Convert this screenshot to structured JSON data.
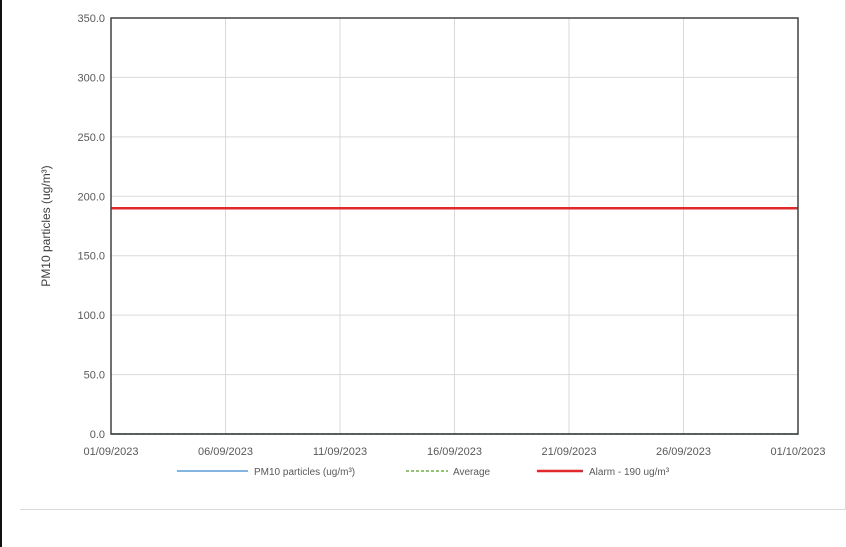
{
  "chart_data": {
    "type": "line",
    "title": "",
    "xlabel": "",
    "ylabel": "PM10 particles (ug/m³)",
    "ylim": [
      0,
      350
    ],
    "yticks": [
      "0.0",
      "50.0",
      "100.0",
      "150.0",
      "200.0",
      "250.0",
      "300.0",
      "350.0"
    ],
    "ytick_values": [
      0,
      50,
      100,
      150,
      200,
      250,
      300,
      350
    ],
    "xlim": [
      "01/09/2023",
      "01/10/2023"
    ],
    "xticks": [
      "01/09/2023",
      "06/09/2023",
      "11/09/2023",
      "16/09/2023",
      "21/09/2023",
      "26/09/2023",
      "01/10/2023"
    ],
    "grid": true,
    "legend_position": "bottom",
    "series": [
      {
        "name": "PM10 particles (ug/m³)",
        "color": "#5b9bd5",
        "style": "solid",
        "x": [
          "01/09/2023",
          "01/10/2023"
        ],
        "values": [
          0,
          0
        ]
      },
      {
        "name": "Average",
        "color": "#70ad47",
        "style": "dashed",
        "x": [
          "01/09/2023",
          "01/10/2023"
        ],
        "values": [
          0,
          0
        ]
      },
      {
        "name": "Alarm - 190 ug/m³",
        "color": "#e0292b",
        "style": "solid",
        "x": [
          "01/09/2023",
          "01/10/2023"
        ],
        "values": [
          190,
          190
        ]
      }
    ]
  }
}
